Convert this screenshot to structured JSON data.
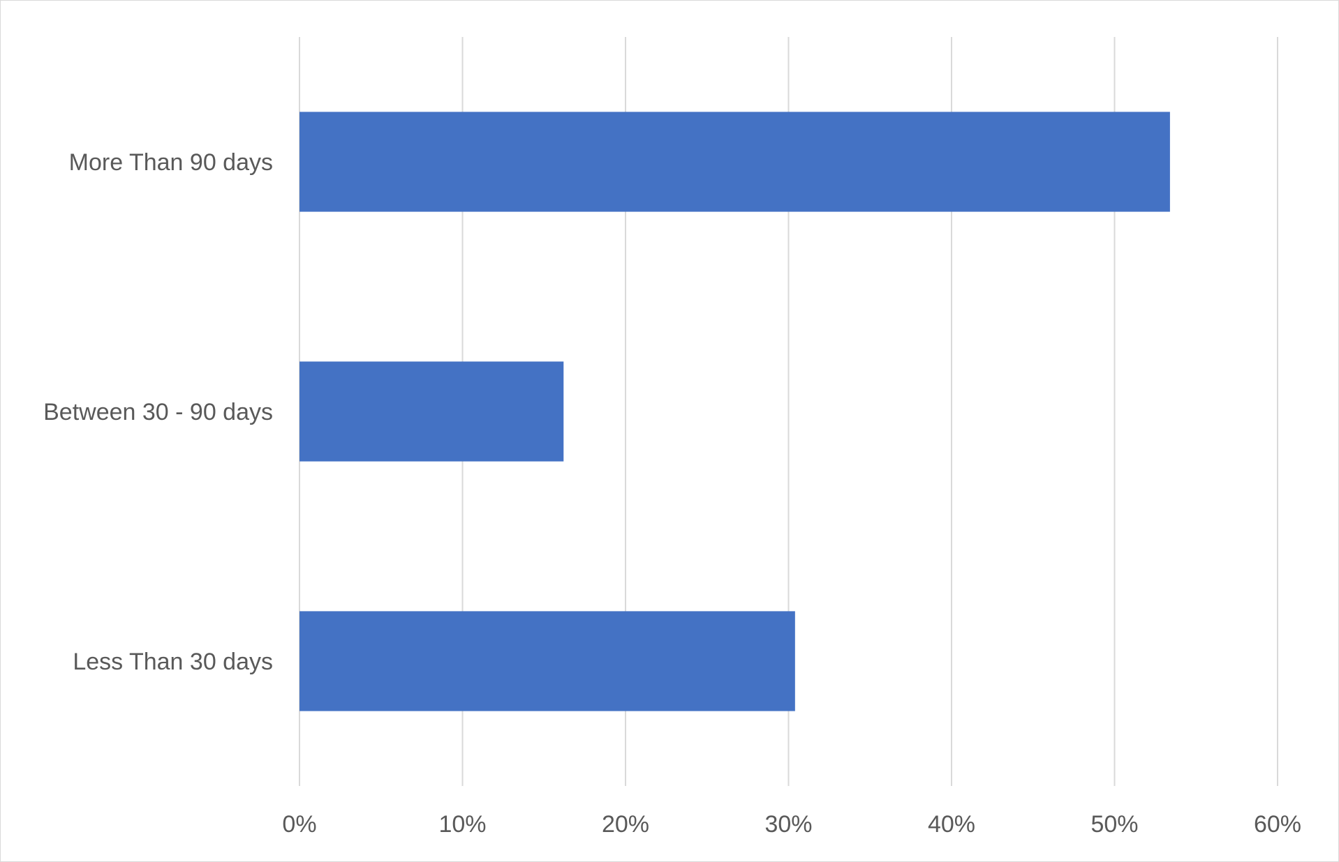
{
  "chart_data": {
    "type": "bar",
    "orientation": "horizontal",
    "categories": [
      "More Than 90 days",
      "Between 30 - 90 days",
      "Less Than 30 days"
    ],
    "values": [
      0.534,
      0.162,
      0.304
    ],
    "xlim": [
      0,
      0.6
    ],
    "x_ticks": [
      0,
      0.1,
      0.2,
      0.3,
      0.4,
      0.5,
      0.6
    ],
    "x_tick_labels": [
      "0%",
      "10%",
      "20%",
      "30%",
      "40%",
      "50%",
      "60%"
    ],
    "title": "",
    "xlabel": "",
    "ylabel": "",
    "grid": "vertical",
    "legend": "none",
    "bar_color": "#4472C4",
    "grid_color": "#D9D9D9",
    "text_color": "#595959"
  }
}
